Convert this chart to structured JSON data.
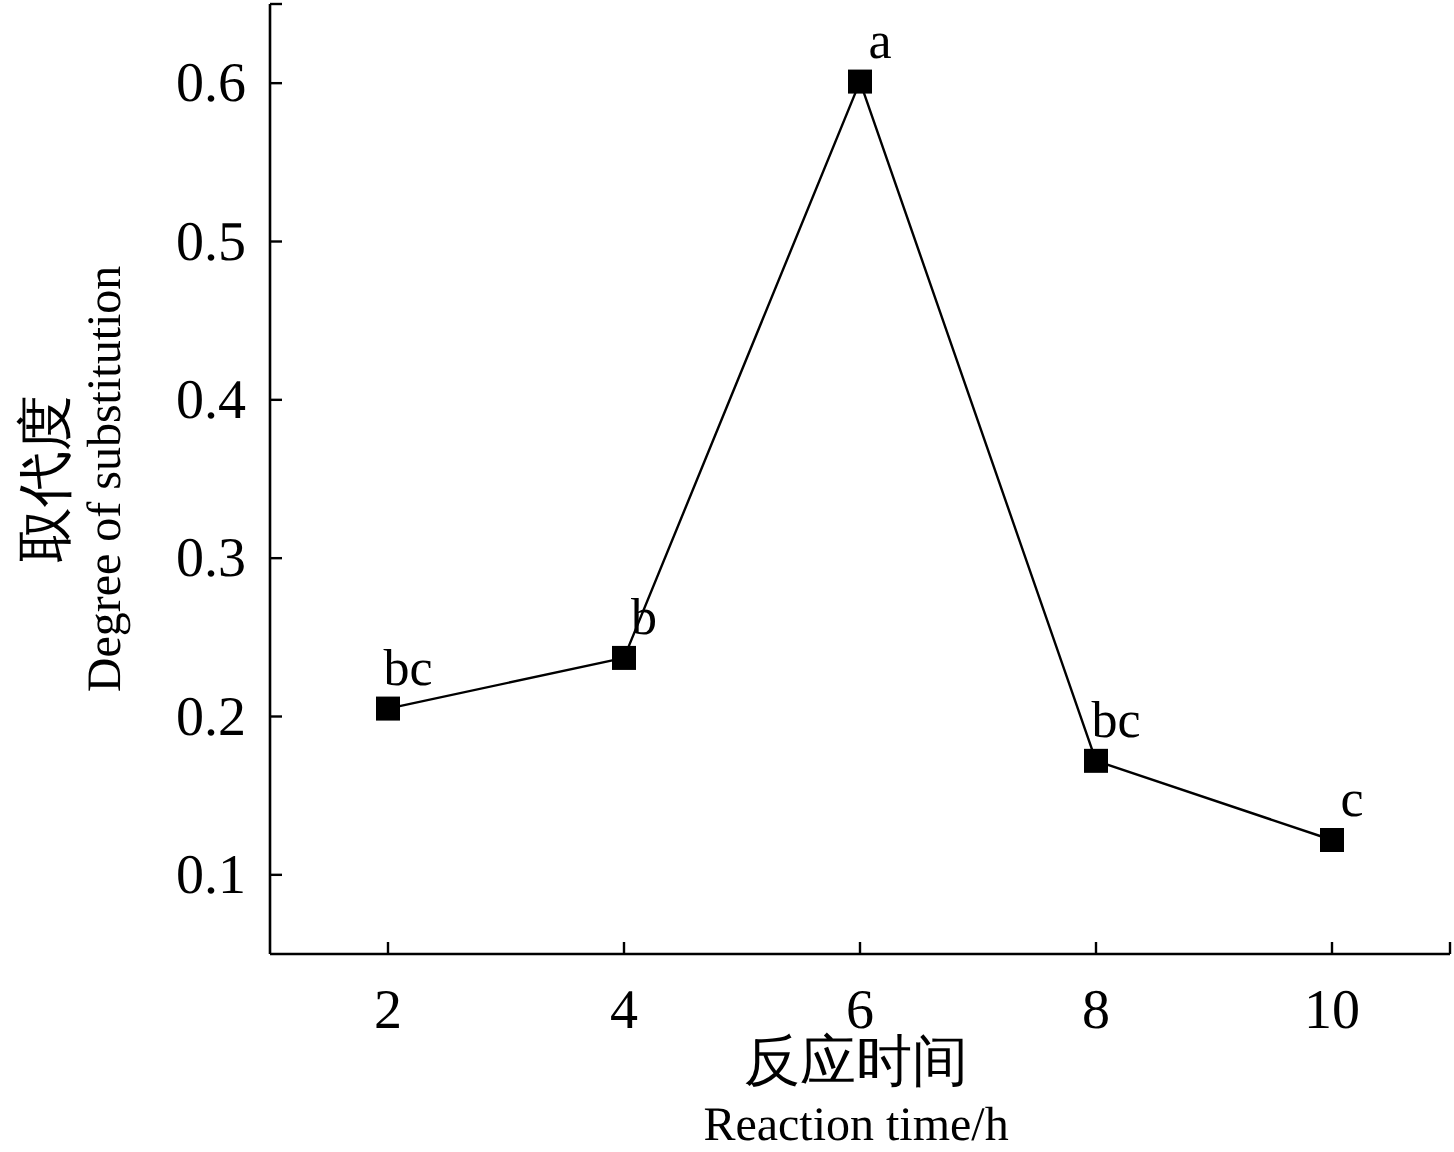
{
  "chart_data": {
    "type": "line",
    "xlabel": "反应时间\nReaction time/h",
    "ylabel": "取代度\nDegree of substitution",
    "x": [
      2,
      4,
      6,
      8,
      10
    ],
    "series": [
      {
        "color": "#000000",
        "values": [
          0.205,
          0.237,
          0.601,
          0.172,
          0.122
        ]
      }
    ],
    "xlim": [
      1,
      11
    ],
    "xticks": [
      2,
      4,
      6,
      8,
      10,
      {
        "value": 11,
        "label": null
      }
    ],
    "ylim": [
      0.05,
      0.65
    ],
    "yticks": [
      0.1,
      0.2,
      0.3,
      0.4,
      0.5,
      0.6,
      {
        "value": 0.65,
        "label": null
      }
    ],
    "marker": "square",
    "line_style": "solid",
    "grid": false,
    "annotations": [
      {
        "text": "bc",
        "x": 2,
        "y": 0.205
      },
      {
        "text": "b",
        "x": 4,
        "y": 0.237
      },
      {
        "text": "a",
        "x": 6,
        "y": 0.601
      },
      {
        "text": "bc",
        "x": 8,
        "y": 0.172
      },
      {
        "text": "c",
        "x": 10,
        "y": 0.122
      }
    ]
  }
}
